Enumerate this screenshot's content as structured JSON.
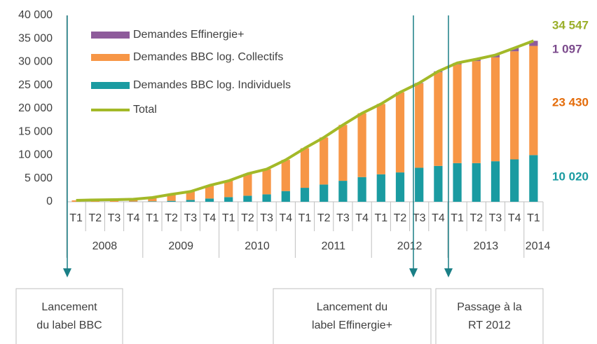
{
  "chart_data": {
    "type": "stacked-bar-line",
    "categories": [
      "T1",
      "T2",
      "T3",
      "T4",
      "T1",
      "T2",
      "T3",
      "T4",
      "T1",
      "T2",
      "T3",
      "T4",
      "T1",
      "T2",
      "T3",
      "T4",
      "T1",
      "T2",
      "T3",
      "T4",
      "T1",
      "T2",
      "T3",
      "T4",
      "T1"
    ],
    "groups": [
      {
        "label": "2008",
        "size": 4
      },
      {
        "label": "2009",
        "size": 4
      },
      {
        "label": "2010",
        "size": 4
      },
      {
        "label": "2011",
        "size": 4
      },
      {
        "label": "2012",
        "size": 4
      },
      {
        "label": "2013",
        "size": 4
      },
      {
        "label": "2014",
        "size": 1
      }
    ],
    "series": [
      {
        "name": "Demandes BBC log. Individuels",
        "color": "#1a9ba1",
        "kind": "bar",
        "values": [
          0,
          0,
          0,
          50,
          100,
          200,
          400,
          700,
          1000,
          1300,
          1600,
          2300,
          3000,
          3700,
          4500,
          5300,
          5900,
          6300,
          7300,
          7700,
          8300,
          8300,
          8700,
          9100,
          10020
        ],
        "value_labels": [
          null,
          null,
          null,
          null,
          null,
          null,
          null,
          null,
          null,
          null,
          null,
          null,
          null,
          null,
          null,
          null,
          null,
          null,
          null,
          null,
          null,
          null,
          null,
          null,
          "10 020"
        ]
      },
      {
        "name": "Demandes BBC log. Collectifs",
        "color": "#f79646",
        "kind": "bar",
        "values": [
          300,
          400,
          450,
          500,
          800,
          1400,
          1800,
          2800,
          3500,
          4700,
          5400,
          6700,
          8500,
          10100,
          12000,
          13700,
          15100,
          17200,
          18100,
          20100,
          21200,
          21900,
          22300,
          23200,
          23430
        ],
        "value_labels": [
          null,
          null,
          null,
          null,
          null,
          null,
          null,
          null,
          null,
          null,
          null,
          null,
          null,
          null,
          null,
          null,
          null,
          null,
          null,
          null,
          null,
          null,
          null,
          null,
          "23 430"
        ]
      },
      {
        "name": "Demandes Effinergie+",
        "color": "#8e5b9b",
        "kind": "bar",
        "values": [
          0,
          0,
          0,
          0,
          0,
          0,
          0,
          0,
          0,
          0,
          0,
          0,
          0,
          0,
          0,
          0,
          0,
          0,
          100,
          200,
          300,
          400,
          500,
          700,
          1097
        ],
        "value_labels": [
          null,
          null,
          null,
          null,
          null,
          null,
          null,
          null,
          null,
          null,
          null,
          null,
          null,
          null,
          null,
          null,
          null,
          null,
          null,
          null,
          null,
          null,
          null,
          null,
          "1 097"
        ]
      },
      {
        "name": "Total",
        "color": "#a3b928",
        "kind": "line",
        "values": [
          300,
          400,
          450,
          550,
          900,
          1600,
          2200,
          3500,
          4500,
          6000,
          7000,
          9000,
          11500,
          13800,
          16500,
          19000,
          21000,
          23500,
          25500,
          28000,
          29800,
          30600,
          31500,
          33000,
          34547
        ],
        "value_labels": [
          null,
          null,
          null,
          null,
          null,
          null,
          null,
          null,
          null,
          null,
          null,
          null,
          null,
          null,
          null,
          null,
          null,
          null,
          null,
          null,
          null,
          null,
          null,
          null,
          "34 547"
        ]
      }
    ],
    "ylim": [
      0,
      40000
    ],
    "yticks": [
      0,
      {
        "value": 5000,
        "label": "5 000"
      },
      {
        "value": 10000,
        "label": "10 000"
      },
      {
        "value": 15000,
        "label": "15 000"
      },
      {
        "value": 20000,
        "label": "20 000"
      },
      {
        "value": 25000,
        "label": "25 000"
      },
      {
        "value": 30000,
        "label": "30 000"
      },
      {
        "value": 35000,
        "label": "35 000"
      },
      {
        "value": 40000,
        "label": "40 000"
      }
    ],
    "annotations": [
      {
        "lines": [
          "Lancement",
          "du label BBC"
        ]
      },
      {
        "lines": [
          "Lancement du",
          "label Effinergie+"
        ]
      },
      {
        "lines": [
          "Passage à la",
          "RT 2012"
        ]
      }
    ]
  }
}
